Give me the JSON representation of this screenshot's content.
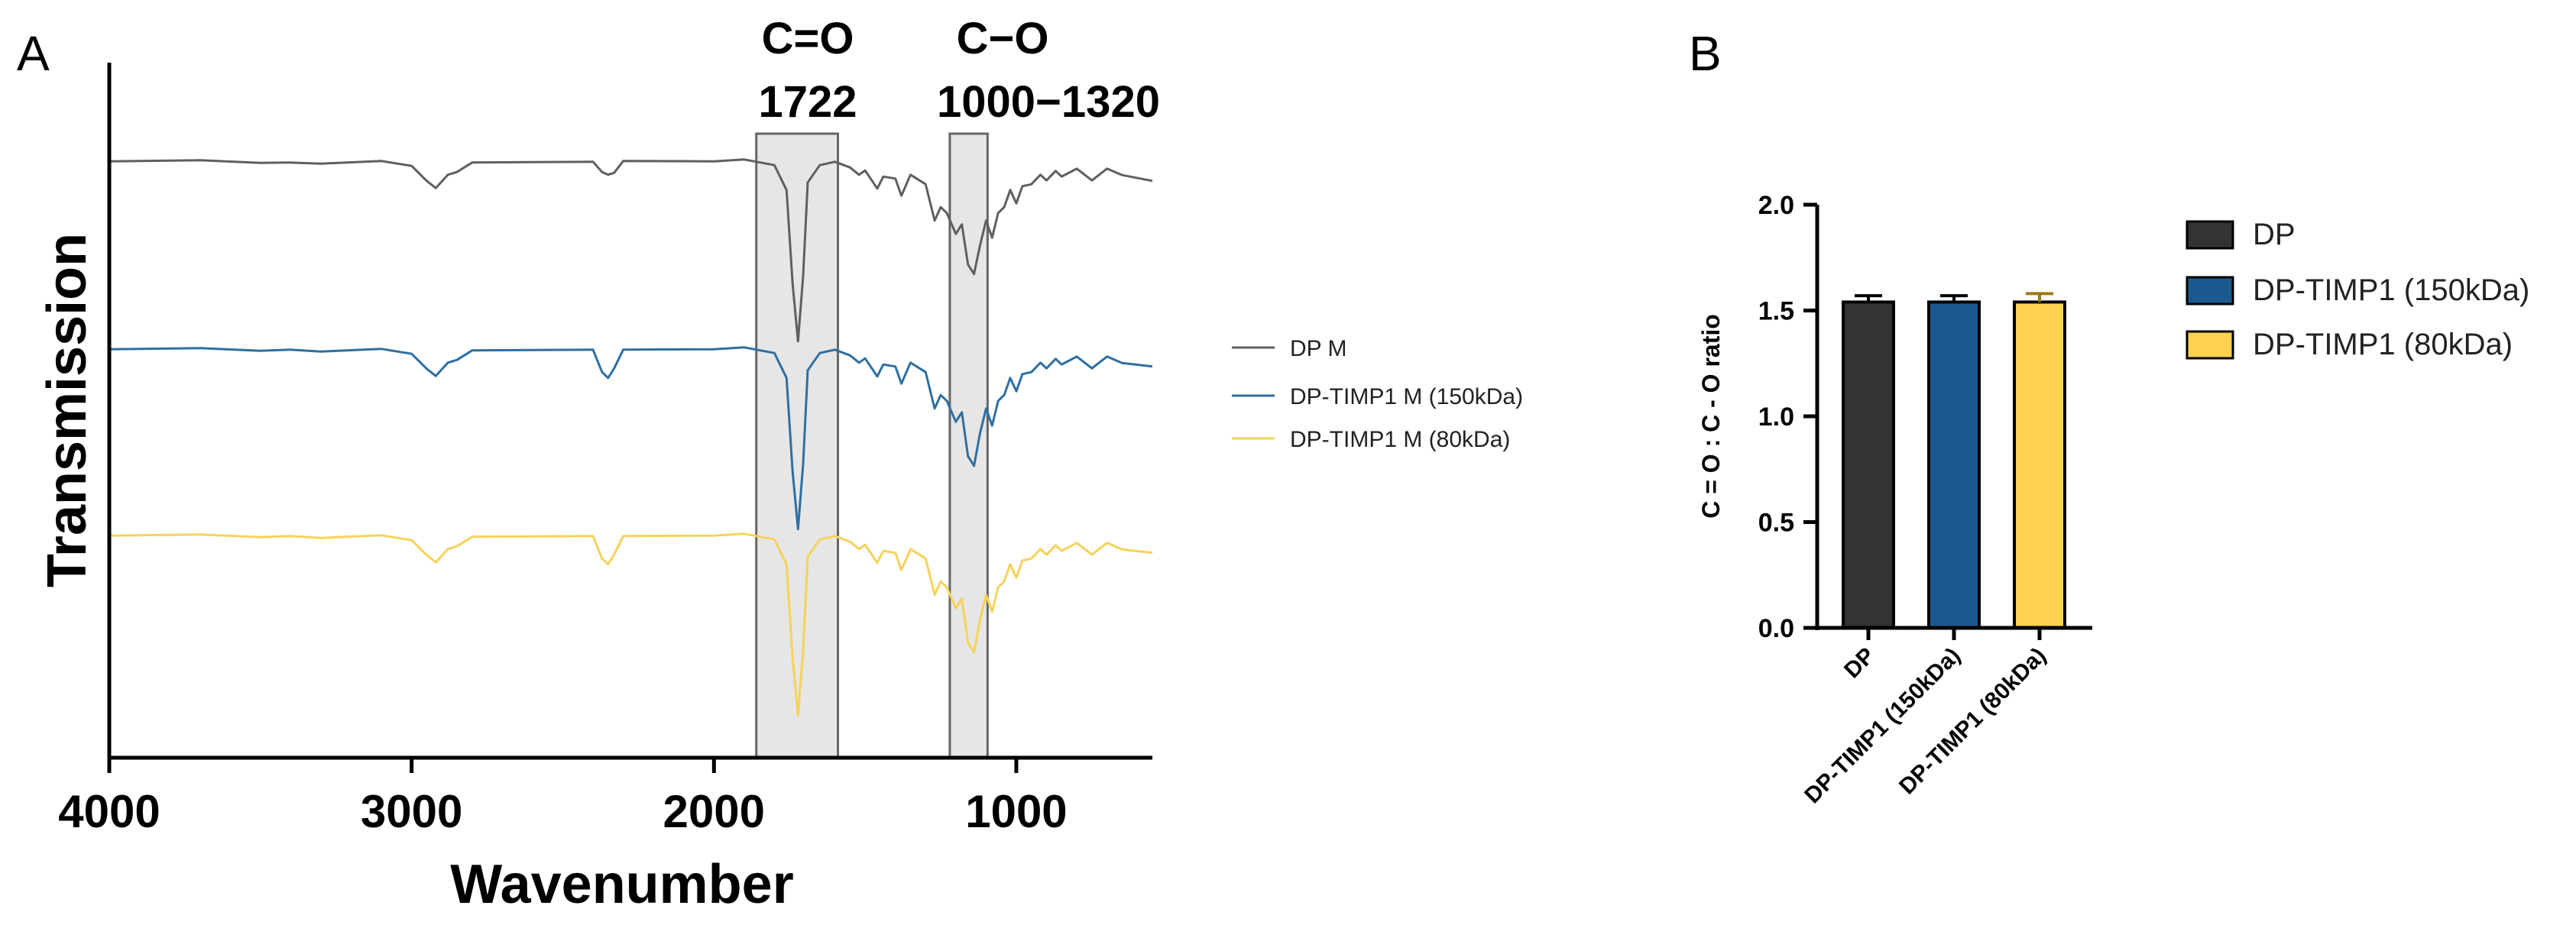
{
  "panel_a": {
    "letter": "A",
    "annotations": [
      {
        "name": "C=O",
        "label": "C=O",
        "value": "1722",
        "band_from": 1860,
        "band_to": 1590
      },
      {
        "name": "C-O",
        "label": "C−O",
        "value": "1000−1320",
        "band_from": 1220,
        "band_to": 1095
      }
    ],
    "legend": [
      "DP M",
      "DP-TIMP1 M (150kDa)",
      "DP-TIMP1 M (80kDa)"
    ]
  },
  "panel_b": {
    "letter": "B",
    "legend": [
      "DP",
      "DP-TIMP1 (150kDa)",
      "DP-TIMP1 (80kDa)"
    ]
  },
  "chart_data": [
    {
      "type": "line",
      "title": "",
      "xlabel": "Wavenumber",
      "ylabel": "Transmission",
      "xlim": [
        4000,
        550
      ],
      "xticks": [
        4000,
        3000,
        2000,
        1000
      ],
      "xtick_labels": [
        "4000",
        "3000",
        "2000",
        "1000"
      ],
      "y_ticks_shown": false,
      "note": "Offset FTIR spectra, y values are relative transmission (0 = baseline, negative = absorption dip)",
      "series": [
        {
          "name": "DP M",
          "color": "#5f5f5f",
          "offset": 0,
          "points": [
            [
              4000,
              0
            ],
            [
              3700,
              -1
            ],
            [
              3500,
              -2
            ],
            [
              3400,
              -4
            ],
            [
              3300,
              -3
            ],
            [
              3100,
              -2
            ],
            [
              3000,
              -6
            ],
            [
              2950,
              -28
            ],
            [
              2920,
              -35
            ],
            [
              2880,
              -20
            ],
            [
              2850,
              -14
            ],
            [
              2800,
              -4
            ],
            [
              2600,
              -1
            ],
            [
              2400,
              -3
            ],
            [
              2370,
              -14
            ],
            [
              2350,
              -20
            ],
            [
              2330,
              -15
            ],
            [
              2300,
              -2
            ],
            [
              2000,
              0
            ],
            [
              1900,
              0
            ],
            [
              1800,
              -5
            ],
            [
              1760,
              -40
            ],
            [
              1740,
              -160
            ],
            [
              1722,
              -238
            ],
            [
              1705,
              -150
            ],
            [
              1690,
              -30
            ],
            [
              1650,
              -5
            ],
            [
              1600,
              -3
            ],
            [
              1550,
              -8
            ],
            [
              1520,
              -20
            ],
            [
              1500,
              -12
            ],
            [
              1460,
              -38
            ],
            [
              1440,
              -20
            ],
            [
              1400,
              -25
            ],
            [
              1380,
              -45
            ],
            [
              1350,
              -20
            ],
            [
              1300,
              -30
            ],
            [
              1270,
              -80
            ],
            [
              1250,
              -60
            ],
            [
              1230,
              -70
            ],
            [
              1200,
              -95
            ],
            [
              1180,
              -85
            ],
            [
              1160,
              -135
            ],
            [
              1140,
              -150
            ],
            [
              1120,
              -110
            ],
            [
              1100,
              -80
            ],
            [
              1080,
              -100
            ],
            [
              1060,
              -70
            ],
            [
              1040,
              -60
            ],
            [
              1020,
              -40
            ],
            [
              1000,
              -55
            ],
            [
              980,
              -35
            ],
            [
              950,
              -30
            ],
            [
              920,
              -20
            ],
            [
              900,
              -25
            ],
            [
              870,
              -15
            ],
            [
              850,
              -20
            ],
            [
              800,
              -12
            ],
            [
              750,
              -25
            ],
            [
              700,
              -12
            ],
            [
              650,
              -18
            ],
            [
              550,
              -28
            ]
          ]
        },
        {
          "name": "DP-TIMP1 M (150kDa)",
          "color": "#2d6fa3",
          "offset": 0,
          "points": [
            [
              4000,
              0
            ],
            [
              3700,
              -1
            ],
            [
              3500,
              -2
            ],
            [
              3400,
              -3
            ],
            [
              3300,
              -3
            ],
            [
              3100,
              -2
            ],
            [
              3000,
              -6
            ],
            [
              2950,
              -28
            ],
            [
              2920,
              -35
            ],
            [
              2880,
              -20
            ],
            [
              2850,
              -14
            ],
            [
              2800,
              -4
            ],
            [
              2600,
              -1
            ],
            [
              2400,
              -3
            ],
            [
              2370,
              -30
            ],
            [
              2350,
              -40
            ],
            [
              2330,
              -25
            ],
            [
              2300,
              -3
            ],
            [
              2000,
              0
            ],
            [
              1900,
              0
            ],
            [
              1800,
              -5
            ],
            [
              1760,
              -40
            ],
            [
              1740,
              -160
            ],
            [
              1722,
              -238
            ],
            [
              1705,
              -150
            ],
            [
              1690,
              -30
            ],
            [
              1650,
              -5
            ],
            [
              1600,
              -3
            ],
            [
              1550,
              -8
            ],
            [
              1520,
              -20
            ],
            [
              1500,
              -12
            ],
            [
              1460,
              -38
            ],
            [
              1440,
              -20
            ],
            [
              1400,
              -25
            ],
            [
              1380,
              -45
            ],
            [
              1350,
              -20
            ],
            [
              1300,
              -30
            ],
            [
              1270,
              -80
            ],
            [
              1250,
              -60
            ],
            [
              1230,
              -70
            ],
            [
              1200,
              -95
            ],
            [
              1180,
              -85
            ],
            [
              1160,
              -140
            ],
            [
              1140,
              -155
            ],
            [
              1120,
              -110
            ],
            [
              1100,
              -80
            ],
            [
              1080,
              -100
            ],
            [
              1060,
              -70
            ],
            [
              1040,
              -60
            ],
            [
              1020,
              -40
            ],
            [
              1000,
              -55
            ],
            [
              980,
              -35
            ],
            [
              950,
              -30
            ],
            [
              920,
              -20
            ],
            [
              900,
              -25
            ],
            [
              870,
              -15
            ],
            [
              850,
              -20
            ],
            [
              800,
              -12
            ],
            [
              750,
              -25
            ],
            [
              700,
              -12
            ],
            [
              650,
              -18
            ],
            [
              550,
              -25
            ]
          ]
        },
        {
          "name": "DP-TIMP1 M (80kDa)",
          "color": "#f6d25a",
          "offset": 0,
          "points": [
            [
              4000,
              0
            ],
            [
              3700,
              -1
            ],
            [
              3500,
              -2
            ],
            [
              3400,
              -3
            ],
            [
              3300,
              -3
            ],
            [
              3100,
              -2
            ],
            [
              3000,
              -6
            ],
            [
              2950,
              -28
            ],
            [
              2920,
              -35
            ],
            [
              2880,
              -20
            ],
            [
              2850,
              -14
            ],
            [
              2800,
              -4
            ],
            [
              2600,
              -1
            ],
            [
              2400,
              -3
            ],
            [
              2370,
              -30
            ],
            [
              2350,
              -40
            ],
            [
              2330,
              -25
            ],
            [
              2300,
              -3
            ],
            [
              2000,
              0
            ],
            [
              1900,
              0
            ],
            [
              1800,
              -5
            ],
            [
              1760,
              -40
            ],
            [
              1740,
              -160
            ],
            [
              1722,
              -238
            ],
            [
              1705,
              -150
            ],
            [
              1690,
              -30
            ],
            [
              1650,
              -5
            ],
            [
              1600,
              -3
            ],
            [
              1550,
              -8
            ],
            [
              1520,
              -20
            ],
            [
              1500,
              -12
            ],
            [
              1460,
              -38
            ],
            [
              1440,
              -20
            ],
            [
              1400,
              -25
            ],
            [
              1380,
              -45
            ],
            [
              1350,
              -20
            ],
            [
              1300,
              -30
            ],
            [
              1270,
              -80
            ],
            [
              1250,
              -60
            ],
            [
              1230,
              -70
            ],
            [
              1200,
              -95
            ],
            [
              1180,
              -85
            ],
            [
              1160,
              -140
            ],
            [
              1140,
              -155
            ],
            [
              1120,
              -110
            ],
            [
              1100,
              -80
            ],
            [
              1080,
              -100
            ],
            [
              1060,
              -70
            ],
            [
              1040,
              -60
            ],
            [
              1020,
              -40
            ],
            [
              1000,
              -55
            ],
            [
              980,
              -35
            ],
            [
              950,
              -30
            ],
            [
              920,
              -20
            ],
            [
              900,
              -25
            ],
            [
              870,
              -15
            ],
            [
              850,
              -20
            ],
            [
              800,
              -12
            ],
            [
              750,
              -25
            ],
            [
              700,
              -12
            ],
            [
              650,
              -18
            ],
            [
              550,
              -25
            ]
          ]
        }
      ]
    },
    {
      "type": "bar",
      "title": "",
      "xlabel": "",
      "ylabel": "C = O : C - O ratio",
      "ylim": [
        0,
        2.0
      ],
      "yticks": [
        0.0,
        0.5,
        1.0,
        1.5,
        2.0
      ],
      "ytick_labels": [
        "0.0",
        "0.5",
        "1.0",
        "1.5",
        "2.0"
      ],
      "categories": [
        "DP",
        "DP-TIMP1 (150kDa)",
        "DP-TIMP1 (80kDa)"
      ],
      "values": [
        1.54,
        1.54,
        1.54
      ],
      "errors": [
        0.03,
        0.03,
        0.04
      ],
      "colors": [
        "#333333",
        "#1b5a8e",
        "#fcd24e"
      ]
    }
  ]
}
